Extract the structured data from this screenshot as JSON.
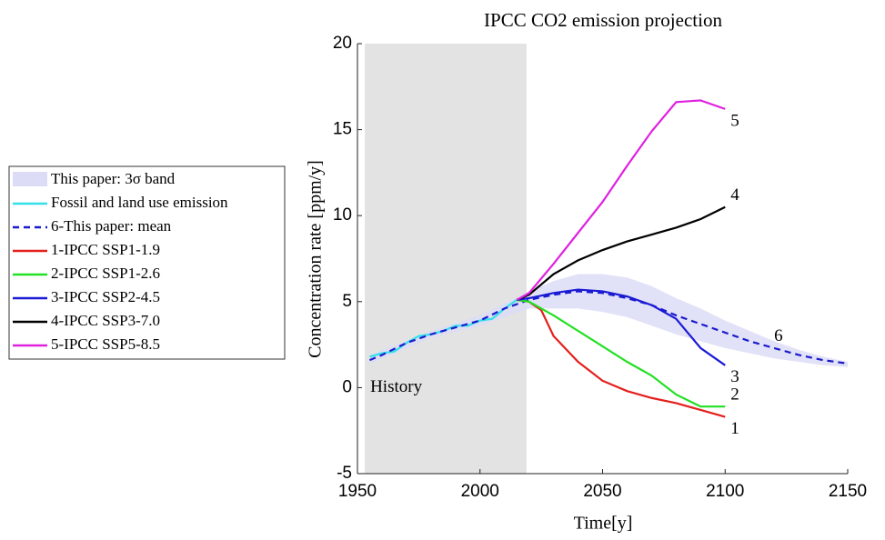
{
  "chart_data": {
    "type": "line",
    "title": "IPCC CO2 emission projection",
    "x_label": "Time[y]",
    "y_label": "Concentration rate [ppm/y]",
    "xlim": [
      1950,
      2150
    ],
    "xticks": [
      1950,
      2000,
      2050,
      2100,
      2150
    ],
    "ylim": [
      -5,
      20
    ],
    "yticks": [
      -5,
      0,
      5,
      10,
      15,
      20
    ],
    "legend": "outside-left",
    "history": {
      "label": "History",
      "span": [
        1953,
        2019
      ],
      "color": "#e3e3e3"
    },
    "band": {
      "name": "This paper: 3σ band",
      "color": "#dcdcf7",
      "x": [
        1955,
        1980,
        2000,
        2020,
        2030,
        2040,
        2050,
        2060,
        2070,
        2080,
        2090,
        2100,
        2110,
        2120,
        2130,
        2140,
        2150
      ],
      "upper": [
        1.9,
        3.3,
        4.2,
        5.6,
        6.2,
        6.6,
        6.6,
        6.4,
        5.9,
        5.2,
        4.6,
        3.9,
        3.3,
        2.7,
        2.2,
        1.8,
        1.5
      ],
      "lower": [
        1.4,
        2.9,
        3.6,
        4.6,
        4.6,
        4.6,
        4.4,
        4.1,
        3.6,
        3.1,
        2.7,
        2.3,
        2.0,
        1.7,
        1.5,
        1.3,
        1.2
      ]
    },
    "series": [
      {
        "name": "Fossil and land use emission",
        "color": "#33e0e8",
        "dashed": false,
        "x": [
          1955,
          1960,
          1965,
          1970,
          1975,
          1980,
          1985,
          1990,
          1995,
          2000,
          2005,
          2010,
          2015,
          2018
        ],
        "values": [
          1.8,
          2.0,
          2.1,
          2.6,
          3.0,
          3.1,
          3.3,
          3.6,
          3.6,
          3.9,
          4.0,
          4.6,
          5.1,
          5.1
        ]
      },
      {
        "name": "6-This paper: mean",
        "color": "#1a1acc",
        "dashed": true,
        "label": "6",
        "x": [
          1955,
          1960,
          1970,
          1980,
          1990,
          2000,
          2010,
          2020,
          2030,
          2040,
          2050,
          2060,
          2070,
          2080,
          2090,
          2100,
          2110,
          2120,
          2130,
          2140,
          2150
        ],
        "values": [
          1.6,
          1.9,
          2.6,
          3.1,
          3.5,
          3.9,
          4.6,
          5.1,
          5.4,
          5.6,
          5.5,
          5.2,
          4.8,
          4.2,
          3.7,
          3.2,
          2.7,
          2.3,
          1.9,
          1.6,
          1.4
        ]
      },
      {
        "name": "1-IPCC SSP1-1.9",
        "color": "#e3201c",
        "dashed": false,
        "label": "1",
        "x": [
          2015,
          2020,
          2025,
          2030,
          2040,
          2050,
          2060,
          2070,
          2080,
          2090,
          2100
        ],
        "values": [
          5.1,
          5.0,
          4.5,
          3.0,
          1.5,
          0.4,
          -0.2,
          -0.6,
          -0.9,
          -1.3,
          -1.7
        ]
      },
      {
        "name": "2-IPCC SSP1-2.6",
        "color": "#22e022",
        "dashed": false,
        "label": "2",
        "x": [
          2015,
          2020,
          2030,
          2040,
          2050,
          2060,
          2070,
          2080,
          2090,
          2100
        ],
        "values": [
          5.1,
          5.0,
          4.2,
          3.3,
          2.4,
          1.5,
          0.7,
          -0.4,
          -1.1,
          -1.1
        ]
      },
      {
        "name": "3-IPCC SSP2-4.5",
        "color": "#1a1ad6",
        "dashed": false,
        "label": "3",
        "x": [
          2015,
          2020,
          2030,
          2040,
          2050,
          2060,
          2070,
          2080,
          2090,
          2100
        ],
        "values": [
          5.1,
          5.2,
          5.5,
          5.7,
          5.6,
          5.3,
          4.8,
          4.0,
          2.3,
          1.3
        ]
      },
      {
        "name": "4-IPCC SSP3-7.0",
        "color": "#000000",
        "dashed": false,
        "label": "4",
        "x": [
          2015,
          2020,
          2030,
          2040,
          2050,
          2060,
          2070,
          2080,
          2090,
          2100
        ],
        "values": [
          5.1,
          5.4,
          6.6,
          7.4,
          8.0,
          8.5,
          8.9,
          9.3,
          9.8,
          10.5
        ]
      },
      {
        "name": "5-IPCC SSP5-8.5",
        "color": "#e020e0",
        "dashed": false,
        "label": "5",
        "x": [
          2015,
          2020,
          2030,
          2040,
          2050,
          2060,
          2070,
          2080,
          2090,
          2100
        ],
        "values": [
          5.1,
          5.5,
          7.2,
          9.0,
          10.8,
          12.9,
          14.9,
          16.6,
          16.7,
          16.2
        ]
      }
    ]
  }
}
